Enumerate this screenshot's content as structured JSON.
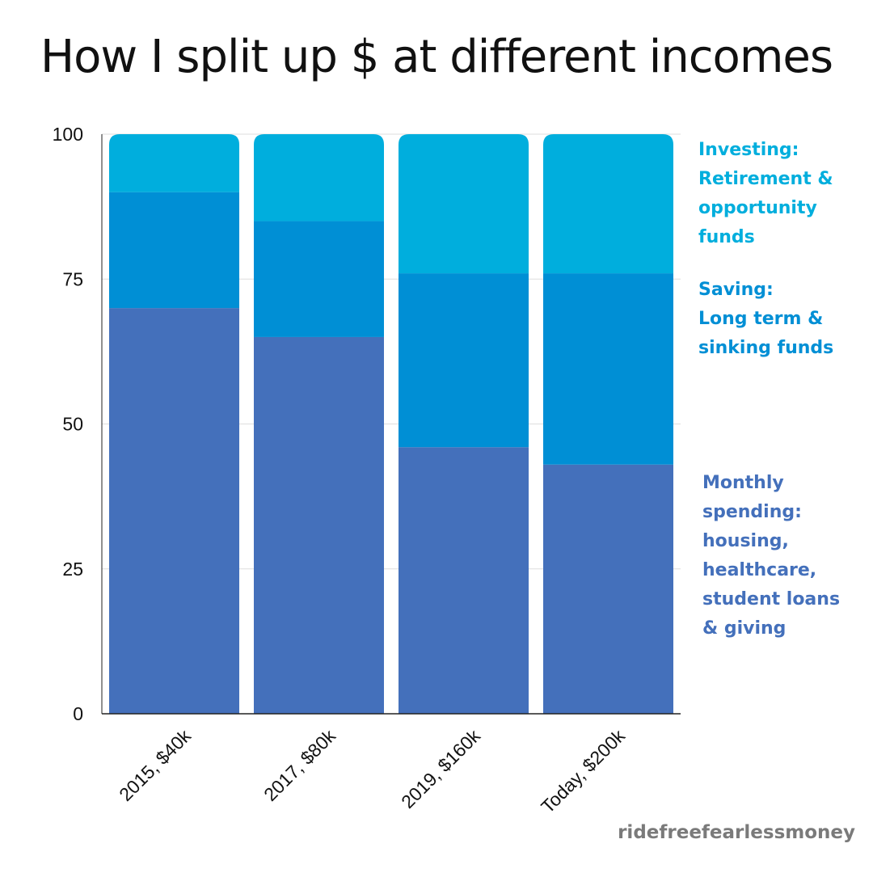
{
  "title": "How I split up $ at different incomes",
  "credit": "ridefreefearlessmoney",
  "colors": {
    "spending": "#4470bb",
    "saving": "#008fd5",
    "investing": "#00aedd",
    "grid": "#dddddd",
    "axis": "#222222"
  },
  "legend": {
    "investing": "Investing:\nRetirement &\nopportunity\nfunds",
    "saving": "Saving:\nLong term &\nsinking funds",
    "spending": "Monthly\nspending:\nhousing,\nhealthcare,\nstudent loans\n& giving"
  },
  "chart_data": {
    "type": "bar",
    "stacked": true,
    "categories": [
      "2015, $40k",
      "2017, $80k",
      "2019, $160k",
      "Today, $200k"
    ],
    "series": [
      {
        "name": "Monthly spending: housing, healthcare, student loans & giving",
        "values": [
          70,
          65,
          46,
          43
        ],
        "color": "#4470bb"
      },
      {
        "name": "Saving: Long term & sinking funds",
        "values": [
          20,
          20,
          30,
          33
        ],
        "color": "#008fd5"
      },
      {
        "name": "Investing: Retirement & opportunity funds",
        "values": [
          10,
          15,
          24,
          24
        ],
        "color": "#00aedd"
      }
    ],
    "ylim": [
      0,
      100
    ],
    "yticks": [
      0,
      25,
      50,
      75,
      100
    ],
    "xlabel": "",
    "ylabel": "",
    "grid": true,
    "legend_position": "right"
  }
}
